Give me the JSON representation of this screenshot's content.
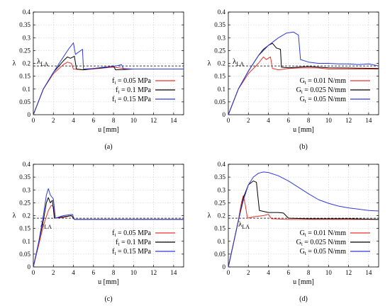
{
  "chart_data": [
    {
      "type": "line",
      "caption": "(a)",
      "xlabel": "u [mm]",
      "ylabel": "λ",
      "xlim": [
        0,
        15
      ],
      "ylim": [
        0,
        0.4
      ],
      "xticks": [
        0,
        2,
        4,
        6,
        8,
        10,
        12,
        14
      ],
      "yticks": [
        0,
        0.05,
        0.1,
        0.15,
        0.2,
        0.25,
        0.3,
        0.35,
        0.4
      ],
      "grid": true,
      "legend": "bottom-right",
      "reference": {
        "label_main": "λ",
        "label_sub": "LA",
        "value": 0.19
      },
      "series": [
        {
          "name_main": "f",
          "name_sub": "t",
          "name_rest": " = 0.05 MPa",
          "color": "#e8312a",
          "points": [
            [
              0,
              0
            ],
            [
              1,
              0.1
            ],
            [
              2,
              0.16
            ],
            [
              3,
              0.195
            ],
            [
              3.4,
              0.205
            ],
            [
              3.8,
              0.2
            ],
            [
              4,
              0.178
            ],
            [
              5,
              0.175
            ],
            [
              6,
              0.178
            ],
            [
              7,
              0.182
            ],
            [
              8,
              0.185
            ],
            [
              9,
              0.18
            ],
            [
              10,
              0.178
            ],
            [
              11,
              0.178
            ],
            [
              12,
              0.178
            ],
            [
              13,
              0.178
            ],
            [
              15,
              0.178
            ]
          ]
        },
        {
          "name_main": "f",
          "name_sub": "t",
          "name_rest": " = 0.1 MPa",
          "color": "#000000",
          "points": [
            [
              0,
              0
            ],
            [
              1,
              0.1
            ],
            [
              2,
              0.165
            ],
            [
              3,
              0.21
            ],
            [
              3.4,
              0.225
            ],
            [
              3.7,
              0.22
            ],
            [
              4.1,
              0.228
            ],
            [
              4.3,
              0.178
            ],
            [
              5,
              0.175
            ],
            [
              6,
              0.18
            ],
            [
              7,
              0.183
            ],
            [
              8,
              0.19
            ],
            [
              8.2,
              0.175
            ],
            [
              9,
              0.176
            ],
            [
              10,
              0.178
            ],
            [
              12,
              0.178
            ],
            [
              15,
              0.178
            ]
          ]
        },
        {
          "name_main": "f",
          "name_sub": "t",
          "name_rest": " = 0.15 MPa",
          "color": "#2f3bd9",
          "points": [
            [
              0,
              0
            ],
            [
              1,
              0.1
            ],
            [
              2,
              0.165
            ],
            [
              3,
              0.225
            ],
            [
              3.5,
              0.255
            ],
            [
              4,
              0.28
            ],
            [
              4.2,
              0.235
            ],
            [
              4.9,
              0.255
            ],
            [
              5,
              0.178
            ],
            [
              6,
              0.18
            ],
            [
              7,
              0.185
            ],
            [
              8,
              0.188
            ],
            [
              8.8,
              0.195
            ],
            [
              9,
              0.178
            ],
            [
              10,
              0.178
            ],
            [
              12,
              0.178
            ],
            [
              15,
              0.178
            ]
          ]
        }
      ]
    },
    {
      "type": "line",
      "caption": "(b)",
      "xlabel": "u [mm]",
      "ylabel": "λ",
      "xlim": [
        0,
        15
      ],
      "ylim": [
        0,
        0.4
      ],
      "xticks": [
        0,
        2,
        4,
        6,
        8,
        10,
        12,
        14
      ],
      "yticks": [
        0,
        0.05,
        0.1,
        0.15,
        0.2,
        0.25,
        0.3,
        0.35,
        0.4
      ],
      "grid": true,
      "legend": "bottom-right",
      "reference": {
        "label_main": "λ",
        "label_sub": "LA",
        "value": 0.19
      },
      "series": [
        {
          "name_main": "G",
          "name_sub": "t",
          "name_rest": " = 0.01 N/mm",
          "color": "#e8312a",
          "points": [
            [
              0,
              0
            ],
            [
              1,
              0.1
            ],
            [
              2,
              0.16
            ],
            [
              3,
              0.2
            ],
            [
              3.5,
              0.225
            ],
            [
              3.8,
              0.215
            ],
            [
              4.2,
              0.225
            ],
            [
              4.4,
              0.18
            ],
            [
              5,
              0.175
            ],
            [
              6,
              0.18
            ],
            [
              7,
              0.182
            ],
            [
              8,
              0.183
            ],
            [
              9,
              0.182
            ],
            [
              10,
              0.178
            ],
            [
              12,
              0.178
            ],
            [
              15,
              0.178
            ]
          ]
        },
        {
          "name_main": "G",
          "name_sub": "t",
          "name_rest": " = 0.025 N/mm",
          "color": "#000000",
          "points": [
            [
              0,
              0
            ],
            [
              1,
              0.1
            ],
            [
              2,
              0.17
            ],
            [
              3,
              0.23
            ],
            [
              3.5,
              0.255
            ],
            [
              4,
              0.27
            ],
            [
              4.4,
              0.278
            ],
            [
              4.8,
              0.26
            ],
            [
              5.2,
              0.255
            ],
            [
              5.3,
              0.185
            ],
            [
              6,
              0.183
            ],
            [
              7,
              0.185
            ],
            [
              8,
              0.188
            ],
            [
              9,
              0.185
            ],
            [
              10,
              0.183
            ],
            [
              12,
              0.182
            ],
            [
              15,
              0.18
            ]
          ]
        },
        {
          "name_main": "G",
          "name_sub": "t",
          "name_rest": " = 0.05 N/mm",
          "color": "#2f3bd9",
          "points": [
            [
              0,
              0
            ],
            [
              1,
              0.1
            ],
            [
              2,
              0.17
            ],
            [
              3,
              0.23
            ],
            [
              4,
              0.27
            ],
            [
              5,
              0.3
            ],
            [
              5.8,
              0.318
            ],
            [
              6.5,
              0.322
            ],
            [
              7,
              0.31
            ],
            [
              7.2,
              0.215
            ],
            [
              8,
              0.205
            ],
            [
              9,
              0.2
            ],
            [
              10,
              0.2
            ],
            [
              11,
              0.198
            ],
            [
              12,
              0.198
            ],
            [
              13,
              0.195
            ],
            [
              14,
              0.198
            ],
            [
              15,
              0.19
            ]
          ]
        }
      ]
    },
    {
      "type": "line",
      "caption": "(c)",
      "xlabel": "u [mm]",
      "ylabel": "λ",
      "xlim": [
        0,
        15
      ],
      "ylim": [
        0,
        0.4
      ],
      "xticks": [
        0,
        2,
        4,
        6,
        8,
        10,
        12,
        14
      ],
      "yticks": [
        0,
        0.05,
        0.1,
        0.15,
        0.2,
        0.25,
        0.3,
        0.35,
        0.4
      ],
      "grid": true,
      "legend": "bottom-right",
      "reference": {
        "label_main": "λ",
        "label_sub": "LA",
        "value": 0.19
      },
      "series": [
        {
          "name_main": "f",
          "name_sub": "t",
          "name_rest": " = 0.05 MPa",
          "color": "#e8312a",
          "points": [
            [
              0,
              0
            ],
            [
              0.5,
              0.08
            ],
            [
              1,
              0.16
            ],
            [
              1.5,
              0.22
            ],
            [
              1.8,
              0.24
            ],
            [
              2,
              0.235
            ],
            [
              2.2,
              0.19
            ],
            [
              3,
              0.193
            ],
            [
              3.8,
              0.2
            ],
            [
              4.1,
              0.185
            ],
            [
              5,
              0.185
            ],
            [
              8,
              0.185
            ],
            [
              15,
              0.185
            ]
          ]
        },
        {
          "name_main": "f",
          "name_sub": "t",
          "name_rest": " = 0.1 MPa",
          "color": "#000000",
          "points": [
            [
              0,
              0
            ],
            [
              0.5,
              0.09
            ],
            [
              1,
              0.18
            ],
            [
              1.3,
              0.25
            ],
            [
              1.5,
              0.27
            ],
            [
              1.7,
              0.25
            ],
            [
              1.9,
              0.26
            ],
            [
              2.1,
              0.19
            ],
            [
              3,
              0.195
            ],
            [
              3.8,
              0.2
            ],
            [
              4.1,
              0.185
            ],
            [
              5,
              0.185
            ],
            [
              15,
              0.185
            ]
          ]
        },
        {
          "name_main": "f",
          "name_sub": "t",
          "name_rest": " = 0.15 MPa",
          "color": "#2f3bd9",
          "points": [
            [
              0,
              0
            ],
            [
              0.5,
              0.09
            ],
            [
              1,
              0.2
            ],
            [
              1.3,
              0.28
            ],
            [
              1.5,
              0.305
            ],
            [
              1.7,
              0.28
            ],
            [
              2,
              0.265
            ],
            [
              2.2,
              0.19
            ],
            [
              3,
              0.2
            ],
            [
              3.9,
              0.205
            ],
            [
              4.1,
              0.185
            ],
            [
              5,
              0.185
            ],
            [
              15,
              0.185
            ]
          ]
        }
      ]
    },
    {
      "type": "line",
      "caption": "(d)",
      "xlabel": "u [mm]",
      "ylabel": "λ",
      "xlim": [
        0,
        15
      ],
      "ylim": [
        0,
        0.4
      ],
      "xticks": [
        0,
        2,
        4,
        6,
        8,
        10,
        12,
        14
      ],
      "yticks": [
        0,
        0.05,
        0.1,
        0.15,
        0.2,
        0.25,
        0.3,
        0.35,
        0.4
      ],
      "grid": true,
      "legend": "bottom-right",
      "reference": {
        "label_main": "λ",
        "label_sub": "LA",
        "value": 0.19
      },
      "series": [
        {
          "name_main": "G",
          "name_sub": "t",
          "name_rest": " = 0.01 N/mm",
          "color": "#e8312a",
          "points": [
            [
              0,
              0
            ],
            [
              0.5,
              0.09
            ],
            [
              1,
              0.18
            ],
            [
              1.3,
              0.25
            ],
            [
              1.5,
              0.278
            ],
            [
              1.7,
              0.24
            ],
            [
              1.9,
              0.19
            ],
            [
              2.5,
              0.195
            ],
            [
              3.5,
              0.2
            ],
            [
              4,
              0.205
            ],
            [
              4.3,
              0.188
            ],
            [
              6,
              0.185
            ],
            [
              10,
              0.185
            ],
            [
              15,
              0.185
            ]
          ]
        },
        {
          "name_main": "G",
          "name_sub": "t",
          "name_rest": " = 0.025 N/mm",
          "color": "#000000",
          "points": [
            [
              0,
              0
            ],
            [
              0.5,
              0.09
            ],
            [
              1,
              0.18
            ],
            [
              1.5,
              0.27
            ],
            [
              2,
              0.32
            ],
            [
              2.5,
              0.335
            ],
            [
              2.8,
              0.33
            ],
            [
              3.1,
              0.22
            ],
            [
              4,
              0.212
            ],
            [
              5,
              0.212
            ],
            [
              5.5,
              0.21
            ],
            [
              6,
              0.19
            ],
            [
              8,
              0.188
            ],
            [
              10,
              0.188
            ],
            [
              12,
              0.188
            ],
            [
              15,
              0.185
            ]
          ]
        },
        {
          "name_main": "G",
          "name_sub": "t",
          "name_rest": " = 0.05 N/mm",
          "color": "#2f3bd9",
          "points": [
            [
              0,
              0
            ],
            [
              0.5,
              0.09
            ],
            [
              1,
              0.18
            ],
            [
              1.5,
              0.26
            ],
            [
              2,
              0.32
            ],
            [
              2.5,
              0.35
            ],
            [
              3,
              0.365
            ],
            [
              3.5,
              0.37
            ],
            [
              4,
              0.368
            ],
            [
              5,
              0.355
            ],
            [
              6,
              0.335
            ],
            [
              7,
              0.31
            ],
            [
              8,
              0.285
            ],
            [
              9,
              0.262
            ],
            [
              10,
              0.248
            ],
            [
              11,
              0.237
            ],
            [
              12,
              0.23
            ],
            [
              13,
              0.225
            ],
            [
              14,
              0.22
            ],
            [
              15,
              0.218
            ]
          ]
        }
      ]
    }
  ]
}
